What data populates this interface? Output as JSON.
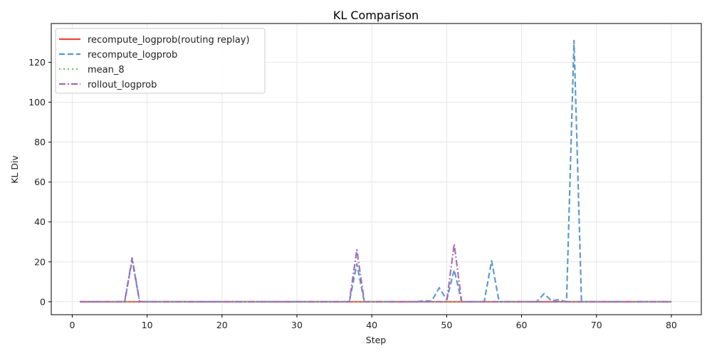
{
  "chart_data": {
    "type": "line",
    "title": "KL Comparison",
    "xlabel": "Step",
    "ylabel": "KL Div",
    "xlim": [
      -2.8,
      84
    ],
    "ylim": [
      -6.5,
      139.5
    ],
    "xticks": [
      0,
      10,
      20,
      30,
      40,
      50,
      60,
      70,
      80
    ],
    "yticks": [
      0,
      20,
      40,
      60,
      80,
      100,
      120
    ],
    "grid": true,
    "legend_position": "upper left",
    "x_range": [
      1,
      80
    ],
    "series": [
      {
        "name": "recompute_logprob(routing replay)",
        "color": "#e8473f",
        "style": "solid",
        "points": [
          [
            1,
            0
          ],
          [
            80,
            0
          ]
        ]
      },
      {
        "name": "recompute_logprob",
        "color": "#5596c8",
        "style": "dashed",
        "points": [
          [
            1,
            0
          ],
          [
            7,
            0
          ],
          [
            8,
            21
          ],
          [
            9,
            0
          ],
          [
            37,
            0
          ],
          [
            38,
            19
          ],
          [
            39,
            0
          ],
          [
            46,
            0
          ],
          [
            47,
            0.5
          ],
          [
            48,
            0.3
          ],
          [
            49,
            7
          ],
          [
            50,
            1
          ],
          [
            51,
            16
          ],
          [
            52,
            0
          ],
          [
            55,
            0
          ],
          [
            56,
            20.5
          ],
          [
            57,
            0
          ],
          [
            62,
            0
          ],
          [
            63,
            4
          ],
          [
            64,
            0.5
          ],
          [
            65,
            1
          ],
          [
            66,
            0
          ],
          [
            67,
            131
          ],
          [
            68,
            0
          ],
          [
            80,
            0
          ]
        ]
      },
      {
        "name": "mean_8",
        "color": "#6fbe6a",
        "style": "dotted",
        "points": [
          [
            1,
            0
          ],
          [
            80,
            0
          ]
        ]
      },
      {
        "name": "rollout_logprob",
        "color": "#a865b8",
        "style": "dashdot",
        "points": [
          [
            1,
            0
          ],
          [
            7,
            0
          ],
          [
            8,
            22
          ],
          [
            9,
            0
          ],
          [
            37,
            0
          ],
          [
            38,
            26
          ],
          [
            39,
            0
          ],
          [
            50,
            0
          ],
          [
            51,
            29
          ],
          [
            52,
            0
          ],
          [
            80,
            0
          ]
        ]
      }
    ]
  },
  "chart": {
    "title": "KL Comparison",
    "xlabel": "Step",
    "ylabel": "KL Div",
    "legend": [
      "recompute_logprob(routing replay)",
      "recompute_logprob",
      "mean_8",
      "rollout_logprob"
    ]
  }
}
